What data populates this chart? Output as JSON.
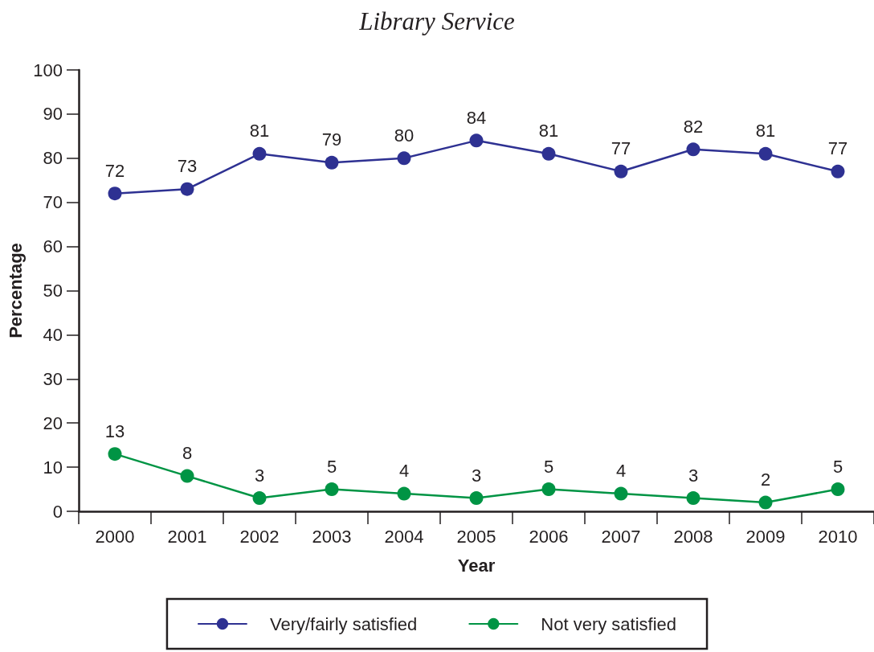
{
  "chart_data": {
    "type": "line",
    "title": "Library Service",
    "xlabel": "Year",
    "ylabel": "Percentage",
    "categories": [
      "2000",
      "2001",
      "2002",
      "2003",
      "2004",
      "2005",
      "2006",
      "2007",
      "2008",
      "2009",
      "2010"
    ],
    "series": [
      {
        "name": "Very/fairly satisfied",
        "color": "#2e3192",
        "values": [
          72,
          73,
          81,
          79,
          80,
          84,
          81,
          77,
          82,
          81,
          77
        ]
      },
      {
        "name": "Not very satisfied",
        "color": "#009444",
        "values": [
          13,
          8,
          3,
          5,
          4,
          3,
          5,
          4,
          3,
          2,
          5
        ]
      }
    ],
    "ylim": [
      0,
      100
    ],
    "yticks": [
      0,
      10,
      20,
      30,
      40,
      50,
      60,
      70,
      80,
      90,
      100
    ],
    "grid": false,
    "legend": "bottom",
    "marker": "circle",
    "line_style": "solid",
    "data_labels": true
  }
}
